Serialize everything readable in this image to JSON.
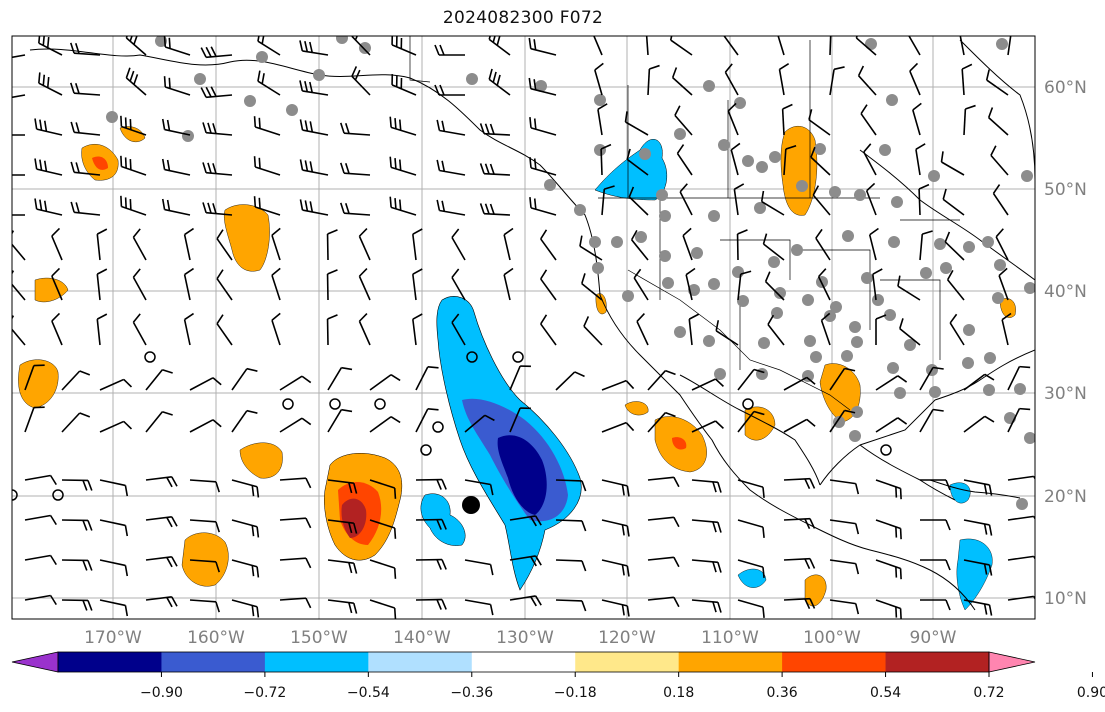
{
  "title": "2024082300 F072",
  "map": {
    "longitude_labels": [
      "170°W",
      "160°W",
      "150°W",
      "140°W",
      "130°W",
      "120°W",
      "110°W",
      "100°W",
      "90°W"
    ],
    "latitude_labels": [
      "60°N",
      "50°N",
      "40°N",
      "30°N",
      "20°N",
      "10°N"
    ],
    "label_color": "#808080",
    "gridline_color": "#b0b0b0"
  },
  "colorbar": {
    "ticks": [
      "−0.90",
      "−0.72",
      "−0.54",
      "−0.36",
      "−0.18",
      "0.18",
      "0.36",
      "0.54",
      "0.72",
      "0.90"
    ],
    "colors": [
      "#9a32cd",
      "#00008b",
      "#3a5bd0",
      "#00bfff",
      "#b0e0ff",
      "#ffffff",
      "#ffe88a",
      "#ffa500",
      "#ff4500",
      "#b22222",
      "#ff85b0"
    ]
  },
  "overlays": {
    "station_marker_color": "#8c8c8c",
    "tropical_center_marker_color": "#000000"
  }
}
